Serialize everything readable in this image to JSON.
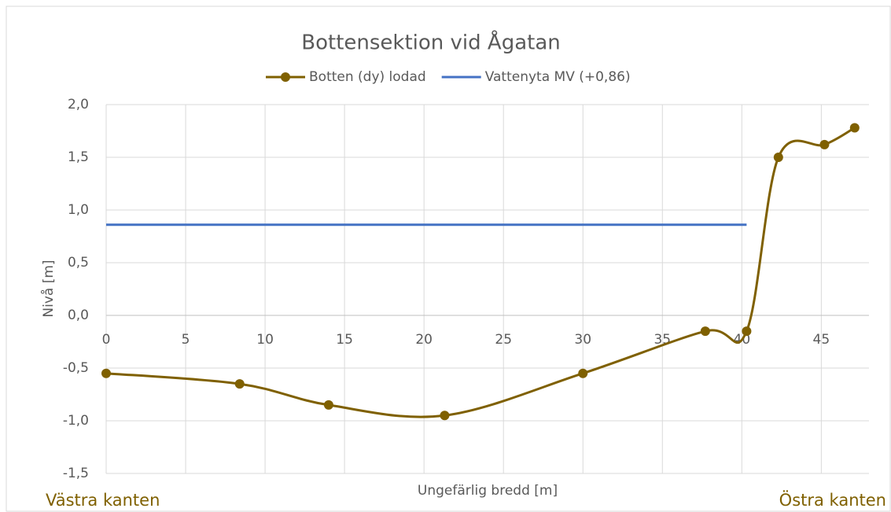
{
  "chart_data": {
    "type": "line",
    "title": "Bottensektion vid Ågatan",
    "xlabel": "Ungefärlig bredd [m]",
    "ylabel": "Nivå [m]",
    "annotations": [
      "Västra kanten",
      "Östra kanten"
    ],
    "series": [
      {
        "name": "Botten (dy) lodad",
        "color": "#7f6000",
        "smooth": true,
        "markers": true,
        "x": [
          0,
          8.4,
          14.0,
          21.3,
          30.0,
          37.7,
          40.3,
          42.3,
          45.2,
          47.1
        ],
        "values": [
          -0.55,
          -0.65,
          -0.85,
          -0.95,
          -0.55,
          -0.15,
          -0.15,
          1.5,
          1.62,
          1.78
        ]
      },
      {
        "name": "Vattenyta MV (+0,86)",
        "color": "#4472c4",
        "smooth": false,
        "markers": false,
        "x": [
          0,
          40.3
        ],
        "values": [
          0.86,
          0.86
        ]
      }
    ],
    "xlim": [
      0,
      48
    ],
    "xticks": [
      0,
      5,
      10,
      15,
      20,
      25,
      30,
      35,
      40,
      45
    ],
    "ylim": [
      -1.5,
      2.0
    ],
    "yticks": [
      {
        "value": -1.5,
        "label": "-1,5"
      },
      {
        "value": -1.0,
        "label": "-1,0"
      },
      {
        "value": -0.5,
        "label": "-0,5"
      },
      {
        "value": 0,
        "label": "0,0"
      },
      {
        "value": 0.5,
        "label": "0,5"
      },
      {
        "value": 1.0,
        "label": "1,0"
      },
      {
        "value": 1.5,
        "label": "1,5"
      },
      {
        "value": 2.0,
        "label": "2,0"
      }
    ],
    "grid": true,
    "legend": "top"
  }
}
